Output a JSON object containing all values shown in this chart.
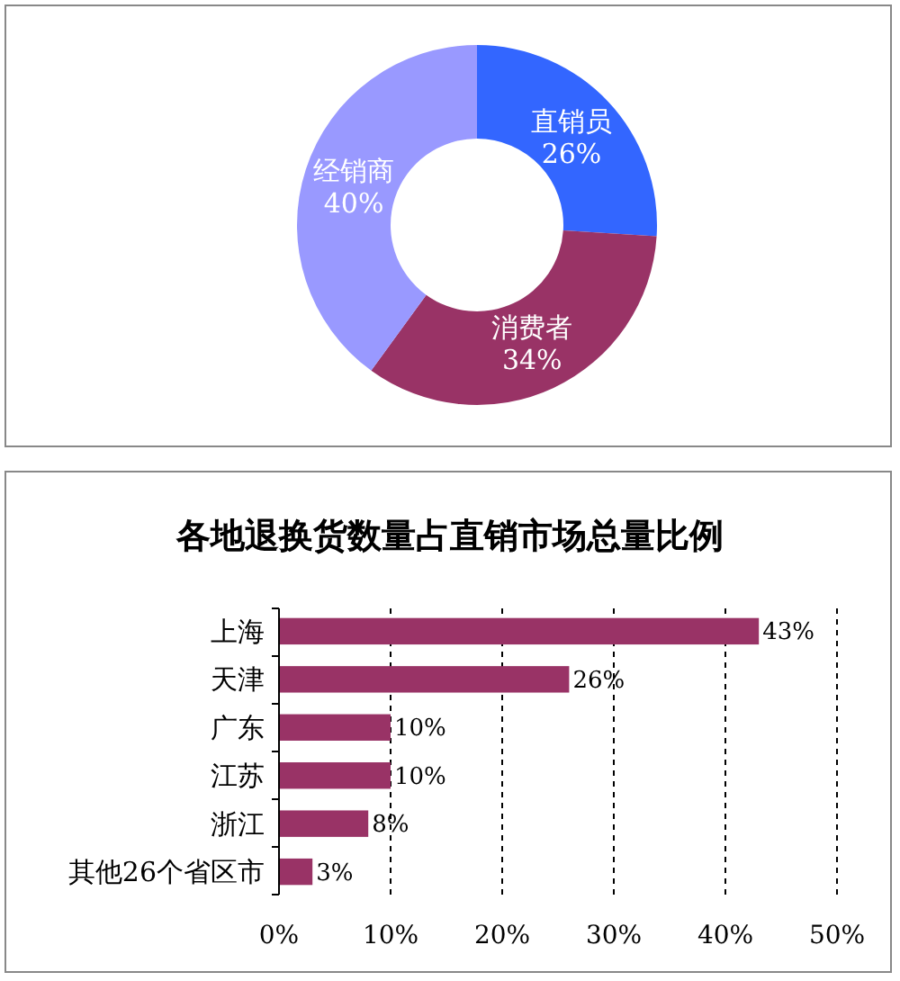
{
  "chart_data": [
    {
      "type": "donut",
      "categories": [
        "直销员",
        "消费者",
        "经销商"
      ],
      "values": [
        26,
        34,
        40
      ],
      "colors": [
        "#3366ff",
        "#993366",
        "#9999ff"
      ],
      "value_labels": [
        "26%",
        "34%",
        "40%"
      ]
    },
    {
      "type": "bar",
      "orientation": "horizontal",
      "title": "各地退换货数量占直销市场总量比例",
      "categories": [
        "上海",
        "天津",
        "广东",
        "江苏",
        "浙江",
        "其他26个省区市"
      ],
      "values": [
        43,
        26,
        10,
        10,
        8,
        3
      ],
      "color": "#993366",
      "value_labels": [
        "43%",
        "26%",
        "10%",
        "10%",
        "8%",
        "3%"
      ],
      "xlim": [
        0,
        50
      ],
      "xticks": [
        {
          "value": 0,
          "label": "0%"
        },
        {
          "value": 10,
          "label": "10%"
        },
        {
          "value": 20,
          "label": "20%"
        },
        {
          "value": 30,
          "label": "30%"
        },
        {
          "value": 40,
          "label": "40%"
        },
        {
          "value": 50,
          "label": "50%"
        }
      ],
      "grid": "x"
    }
  ]
}
